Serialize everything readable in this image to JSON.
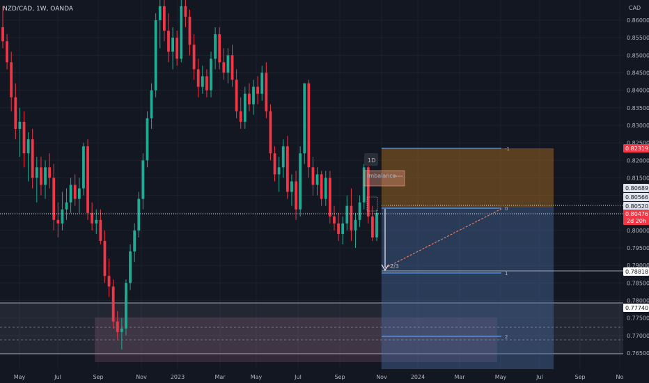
{
  "header": {
    "symbol": "NZD/CAD, 1W, OANDA",
    "currency": "CAD"
  },
  "colors": {
    "bg": "#131722",
    "up": "#22ab94",
    "down": "#f23645",
    "grid": "#1e222d",
    "axis_text": "#b2b5be"
  },
  "chart_data": {
    "type": "candlestick",
    "interval": "1W",
    "ylim": [
      0.7622,
      0.8658
    ],
    "price_ticks": [
      "0.86000",
      "0.85500",
      "0.85000",
      "0.84500",
      "0.84000",
      "0.83500",
      "0.83000",
      "0.82500",
      "0.82000",
      "0.81500",
      "0.81000",
      "0.80500",
      "0.80000",
      "0.79500",
      "0.79000",
      "0.78500",
      "0.78000",
      "0.77500",
      "0.77000",
      "0.76500"
    ],
    "time_ticks": [
      "May",
      "Jul",
      "Sep",
      "Nov",
      "2023",
      "Mar",
      "May",
      "Jul",
      "Sep",
      "Nov",
      "2024",
      "Mar",
      "May",
      "Jul",
      "Sep",
      "No"
    ],
    "candles": [
      [
        0.858,
        0.864,
        0.852,
        0.854
      ],
      [
        0.854,
        0.856,
        0.846,
        0.848
      ],
      [
        0.848,
        0.851,
        0.834,
        0.838
      ],
      [
        0.838,
        0.842,
        0.826,
        0.829
      ],
      [
        0.829,
        0.835,
        0.821,
        0.831
      ],
      [
        0.831,
        0.834,
        0.818,
        0.822
      ],
      [
        0.822,
        0.828,
        0.814,
        0.826
      ],
      [
        0.826,
        0.829,
        0.812,
        0.815
      ],
      [
        0.815,
        0.821,
        0.808,
        0.818
      ],
      [
        0.818,
        0.821,
        0.81,
        0.813
      ],
      [
        0.813,
        0.82,
        0.809,
        0.818
      ],
      [
        0.818,
        0.822,
        0.812,
        0.815
      ],
      [
        0.815,
        0.819,
        0.8,
        0.803
      ],
      [
        0.803,
        0.808,
        0.798,
        0.802
      ],
      [
        0.802,
        0.811,
        0.8,
        0.806
      ],
      [
        0.806,
        0.812,
        0.803,
        0.808
      ],
      [
        0.808,
        0.815,
        0.805,
        0.813
      ],
      [
        0.813,
        0.816,
        0.807,
        0.809
      ],
      [
        0.809,
        0.815,
        0.805,
        0.812
      ],
      [
        0.812,
        0.825,
        0.81,
        0.824
      ],
      [
        0.824,
        0.826,
        0.803,
        0.805
      ],
      [
        0.805,
        0.808,
        0.8,
        0.802
      ],
      [
        0.802,
        0.806,
        0.799,
        0.803
      ],
      [
        0.803,
        0.806,
        0.796,
        0.797
      ],
      [
        0.797,
        0.8,
        0.785,
        0.787
      ],
      [
        0.787,
        0.792,
        0.781,
        0.784
      ],
      [
        0.784,
        0.786,
        0.772,
        0.774
      ],
      [
        0.774,
        0.777,
        0.769,
        0.771
      ],
      [
        0.771,
        0.775,
        0.766,
        0.772
      ],
      [
        0.772,
        0.786,
        0.77,
        0.785
      ],
      [
        0.785,
        0.796,
        0.783,
        0.794
      ],
      [
        0.794,
        0.802,
        0.791,
        0.8
      ],
      [
        0.8,
        0.811,
        0.798,
        0.809
      ],
      [
        0.809,
        0.822,
        0.806,
        0.82
      ],
      [
        0.82,
        0.834,
        0.818,
        0.832
      ],
      [
        0.832,
        0.842,
        0.829,
        0.84
      ],
      [
        0.84,
        0.862,
        0.838,
        0.86
      ],
      [
        0.86,
        0.866,
        0.852,
        0.864
      ],
      [
        0.864,
        0.867,
        0.854,
        0.857
      ],
      [
        0.857,
        0.862,
        0.848,
        0.851
      ],
      [
        0.851,
        0.858,
        0.846,
        0.855
      ],
      [
        0.855,
        0.857,
        0.847,
        0.849
      ],
      [
        0.849,
        0.866,
        0.848,
        0.864
      ],
      [
        0.864,
        0.867,
        0.858,
        0.861
      ],
      [
        0.861,
        0.863,
        0.85,
        0.853
      ],
      [
        0.853,
        0.856,
        0.843,
        0.846
      ],
      [
        0.846,
        0.849,
        0.838,
        0.841
      ],
      [
        0.841,
        0.847,
        0.839,
        0.844
      ],
      [
        0.844,
        0.846,
        0.838,
        0.84
      ],
      [
        0.84,
        0.851,
        0.838,
        0.849
      ],
      [
        0.849,
        0.858,
        0.846,
        0.856
      ],
      [
        0.856,
        0.858,
        0.846,
        0.848
      ],
      [
        0.848,
        0.852,
        0.843,
        0.845
      ],
      [
        0.845,
        0.852,
        0.842,
        0.85
      ],
      [
        0.85,
        0.853,
        0.841,
        0.843
      ],
      [
        0.843,
        0.846,
        0.832,
        0.834
      ],
      [
        0.834,
        0.838,
        0.829,
        0.831
      ],
      [
        0.831,
        0.841,
        0.829,
        0.839
      ],
      [
        0.839,
        0.842,
        0.834,
        0.836
      ],
      [
        0.836,
        0.843,
        0.833,
        0.841
      ],
      [
        0.841,
        0.844,
        0.836,
        0.839
      ],
      [
        0.839,
        0.847,
        0.837,
        0.845
      ],
      [
        0.845,
        0.848,
        0.832,
        0.834
      ],
      [
        0.834,
        0.836,
        0.82,
        0.822
      ],
      [
        0.822,
        0.824,
        0.814,
        0.816
      ],
      [
        0.816,
        0.821,
        0.811,
        0.818
      ],
      [
        0.818,
        0.826,
        0.815,
        0.824
      ],
      [
        0.824,
        0.827,
        0.809,
        0.811
      ],
      [
        0.811,
        0.816,
        0.807,
        0.814
      ],
      [
        0.814,
        0.817,
        0.803,
        0.806
      ],
      [
        0.806,
        0.824,
        0.804,
        0.822
      ],
      [
        0.822,
        0.842,
        0.819,
        0.842
      ],
      [
        0.842,
        0.843,
        0.815,
        0.818
      ],
      [
        0.818,
        0.821,
        0.81,
        0.813
      ],
      [
        0.813,
        0.818,
        0.81,
        0.816
      ],
      [
        0.816,
        0.817,
        0.807,
        0.809
      ],
      [
        0.809,
        0.817,
        0.807,
        0.815
      ],
      [
        0.815,
        0.817,
        0.802,
        0.804
      ],
      [
        0.804,
        0.807,
        0.8,
        0.802
      ],
      [
        0.802,
        0.805,
        0.797,
        0.799
      ],
      [
        0.799,
        0.804,
        0.796,
        0.802
      ],
      [
        0.802,
        0.81,
        0.8,
        0.807
      ],
      [
        0.807,
        0.812,
        0.797,
        0.8
      ],
      [
        0.8,
        0.805,
        0.795,
        0.803
      ],
      [
        0.803,
        0.81,
        0.801,
        0.808
      ],
      [
        0.808,
        0.819,
        0.806,
        0.818
      ],
      [
        0.818,
        0.821,
        0.802,
        0.804
      ],
      [
        0.804,
        0.807,
        0.797,
        0.798
      ],
      [
        0.798,
        0.806,
        0.797,
        0.805
      ]
    ],
    "current_price": {
      "value": "0.80476",
      "countdown": "2d 20h"
    },
    "price_labels": [
      "0.82319",
      "0.80689",
      "0.80566",
      "0.80520",
      "0.78818",
      "0.77740"
    ],
    "annotations": {
      "timeframe": "1D",
      "imbalance": "Imbalance",
      "target": "2/3",
      "fib_labels": [
        "-1",
        "0",
        "1",
        "2"
      ]
    }
  }
}
